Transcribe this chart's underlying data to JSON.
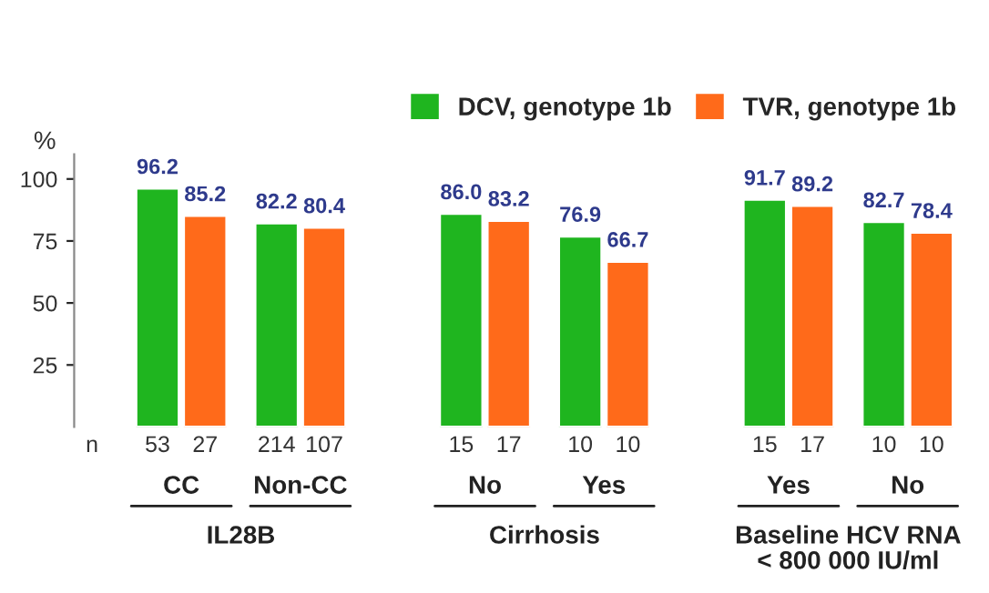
{
  "chart_data": {
    "type": "bar",
    "categories": [
      "CC",
      "Non-CC",
      "No",
      "Yes",
      "Yes",
      "No"
    ],
    "series": [
      {
        "name": "DCV, genotype 1b",
        "color": "#1fb51f",
        "values": [
          96.2,
          82.2,
          86.0,
          76.9,
          91.7,
          82.7
        ],
        "value_labels": [
          "96.2",
          "82.2",
          "86.0",
          "76.9",
          "91.7",
          "82.7"
        ]
      },
      {
        "name": "TVR, genotype 1b",
        "color": "#ff6a1a",
        "values": [
          85.2,
          80.4,
          83.2,
          66.7,
          89.2,
          78.4
        ],
        "value_labels": [
          "85.2",
          "80.4",
          "83.2",
          "66.7",
          "89.2",
          "78.4"
        ]
      }
    ],
    "ylabel": "%",
    "ylim": [
      0,
      110
    ],
    "yticks": [
      25,
      50,
      75,
      100
    ],
    "legend": "top right",
    "grid": false,
    "annotations": [
      "n",
      "53",
      "27",
      "214",
      "107",
      "15",
      "17",
      "10",
      "10",
      "15",
      "17",
      "10",
      "10",
      "IL28B",
      "Cirrhosis",
      "Baseline HCV RNA\n< 800 000 IU/ml"
    ]
  }
}
